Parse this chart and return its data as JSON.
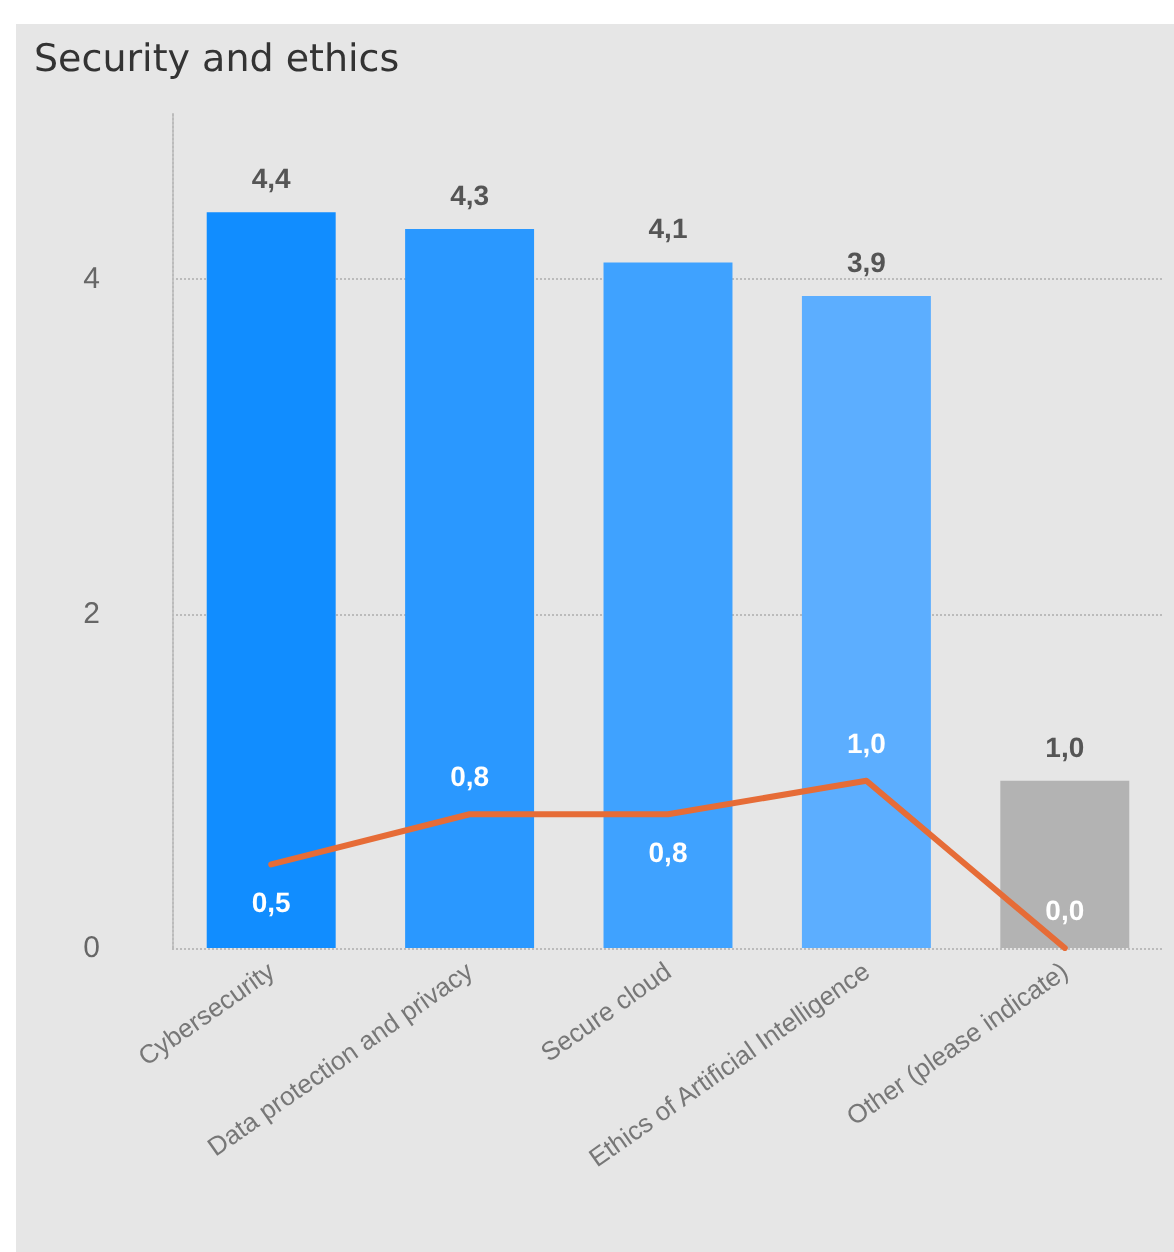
{
  "chart_data": {
    "type": "bar",
    "title": "Security and ethics",
    "categories": [
      "Cybersecurity",
      "Data protection and privacy",
      "Secure cloud",
      "Ethics of Artificial Intelligence",
      "Other (please indicate)"
    ],
    "series": [
      {
        "colors": [
          "#118dff",
          "#2a98ff",
          "#3fa2ff",
          "#5caeff",
          "#b3b3b3"
        ],
        "values": [
          4.4,
          4.3,
          4.1,
          3.9,
          1.0
        ],
        "value_labels": [
          "4,4",
          "4,3",
          "4,1",
          "3,9",
          "1,0"
        ]
      },
      {
        "type": "line",
        "color": "#e66c37",
        "values": [
          0.5,
          0.8,
          0.8,
          1.0,
          0.0
        ],
        "value_labels": [
          "0,5",
          "0,8",
          "0,8",
          "1,0",
          "0,0"
        ]
      }
    ],
    "ylim": [
      0,
      5
    ],
    "yticks": [
      0,
      2,
      4
    ],
    "grid": "y",
    "marker": "none"
  }
}
